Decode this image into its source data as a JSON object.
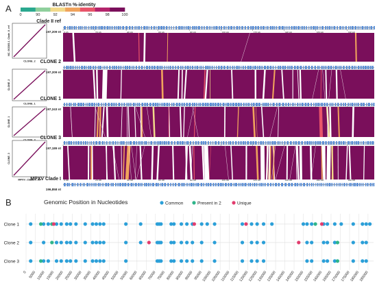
{
  "figure": {
    "panel_a_letter": "A",
    "panel_b_letter": "B"
  },
  "panel_a": {
    "colorbar": {
      "title": "BLASTn %-identity",
      "ticks": [
        "0",
        "90",
        "92",
        "94",
        "96",
        "98",
        "100"
      ],
      "colors": [
        "#2aa88f",
        "#8fcf9c",
        "#f2d98a",
        "#f0a35c",
        "#e8556a",
        "#b3246b",
        "#7a0f5b"
      ]
    },
    "dotplots": [
      {
        "xlabel": "CLONE_2",
        "ylabel": "NC_063383.1_Clade_II_ref"
      },
      {
        "xlabel": "CLONE_1",
        "ylabel": "CLONE_2"
      },
      {
        "xlabel": "CLONE_3",
        "ylabel": "CLONE_1"
      },
      {
        "xlabel": "MPXV_Clade_I_ref",
        "ylabel": "CLONE_3"
      }
    ],
    "tracks": [
      {
        "name": "Clade II ref",
        "size": "197,209 nt"
      },
      {
        "name": "CLONE 2",
        "size": "197,209 nt"
      },
      {
        "name": "CLONE 1",
        "size": "197,243 nt"
      },
      {
        "name": "CLONE 3",
        "size": "197,189 nt"
      },
      {
        "name": "MPXV Clade I",
        "size": "196,858 nt"
      }
    ],
    "scale_ticks": [
      "0 kb",
      "20 kb",
      "40 kb",
      "60 kb",
      "80 kb",
      "100 kb",
      "120 kb",
      "140 kb",
      "160 kb",
      "180 kb"
    ],
    "colors": {
      "alignment": "#7a0f5b",
      "gene_marks": "#5b8fd6",
      "axis": "#333333"
    }
  },
  "chart_data": {
    "type": "scatter",
    "title": "Genomic Position in Nucleotides",
    "legend_position": "top",
    "categories": [
      "Clone 1",
      "Clone 2",
      "Clone 3"
    ],
    "x_ticks": [
      0,
      5000,
      10000,
      15000,
      20000,
      25000,
      30000,
      35000,
      40000,
      45000,
      50000,
      55000,
      60000,
      65000,
      70000,
      75000,
      80000,
      85000,
      90000,
      95000,
      100000,
      105000,
      110000,
      115000,
      120000,
      125000,
      130000,
      135000,
      140000,
      145000,
      150000,
      155000,
      160000,
      165000,
      170000,
      175000,
      180000,
      185000
    ],
    "xlim": [
      0,
      188000
    ],
    "grid": true,
    "series": [
      {
        "name": "Common",
        "color": "#2b9fd8",
        "points": [
          {
            "y": "Clone 1",
            "x": [
              2500,
              9500,
              12000,
              16500,
              19000,
              22000,
              24000,
              27000,
              32000,
              36000,
              38000,
              40000,
              42000,
              54000,
              62000,
              71000,
              72000,
              73000,
              78500,
              80000,
              84000,
              87000,
              90000,
              95000,
              98000,
              102000,
              117000,
              122000,
              125000,
              128500,
              133000,
              150000,
              152000,
              154500,
              161000,
              163000,
              167000,
              170500,
              177000,
              182000,
              184000,
              186000
            ]
          },
          {
            "y": "Clone 2",
            "x": [
              2500,
              9500,
              16500,
              19000,
              22000,
              24000,
              27000,
              32000,
              36000,
              38000,
              40000,
              42000,
              54000,
              62000,
              71000,
              72000,
              73000,
              78500,
              80000,
              84000,
              87000,
              90000,
              95000,
              102000,
              117000,
              122000,
              125000,
              128500,
              152000,
              154500,
              161000,
              163000,
              167000,
              177000,
              182000,
              184000
            ]
          },
          {
            "y": "Clone 3",
            "x": [
              2500,
              9500,
              12000,
              16500,
              19000,
              22000,
              24000,
              27000,
              32000,
              36000,
              38000,
              40000,
              42000,
              54000,
              71000,
              72000,
              73000,
              78500,
              80000,
              84000,
              87000,
              90000,
              95000,
              102000,
              117000,
              122000,
              125000,
              128500,
              152000,
              154500,
              161000,
              163000,
              167000,
              177000,
              182000,
              184000
            ]
          }
        ]
      },
      {
        "name": "Present in 2",
        "color": "#2fb58a",
        "points": [
          {
            "y": "Clone 1",
            "x": [
              8000,
              14000,
              156500
            ]
          },
          {
            "y": "Clone 2",
            "x": [
              14000,
              168500
            ]
          },
          {
            "y": "Clone 3",
            "x": [
              8000,
              168500
            ]
          }
        ]
      },
      {
        "name": "Unique",
        "color": "#e23d6e",
        "points": [
          {
            "y": "Clone 1",
            "x": [
              15000,
              91000,
              119000,
              160000
            ]
          },
          {
            "y": "Clone 2",
            "x": [
              66500,
              147500
            ]
          },
          {
            "y": "Clone 3",
            "x": []
          }
        ]
      }
    ]
  }
}
